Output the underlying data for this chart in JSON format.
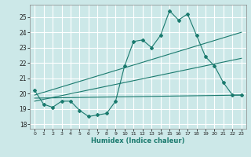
{
  "xlabel": "Humidex (Indice chaleur)",
  "ylabel": "",
  "bg_color": "#cce8e8",
  "grid_color": "#ffffff",
  "line_color": "#1a7a6e",
  "xlim": [
    -0.5,
    23.5
  ],
  "ylim": [
    17.7,
    25.8
  ],
  "yticks": [
    18,
    19,
    20,
    21,
    22,
    23,
    24,
    25
  ],
  "xticks": [
    0,
    1,
    2,
    3,
    4,
    5,
    6,
    7,
    8,
    9,
    10,
    11,
    12,
    13,
    14,
    15,
    16,
    17,
    18,
    19,
    20,
    21,
    22,
    23
  ],
  "main_x": [
    0,
    1,
    2,
    3,
    4,
    5,
    6,
    7,
    8,
    9,
    10,
    11,
    12,
    13,
    14,
    15,
    16,
    17,
    18,
    19,
    20,
    21,
    22,
    23
  ],
  "main_y": [
    20.2,
    19.3,
    19.1,
    19.5,
    19.5,
    18.9,
    18.5,
    18.6,
    18.7,
    19.5,
    21.8,
    23.4,
    23.5,
    23.0,
    23.8,
    25.4,
    24.8,
    25.2,
    23.8,
    22.4,
    21.8,
    20.7,
    19.9,
    19.9
  ],
  "line1_x": [
    0,
    23
  ],
  "line1_y": [
    19.7,
    19.9
  ],
  "line2_x": [
    0,
    23
  ],
  "line2_y": [
    19.5,
    22.3
  ],
  "line3_x": [
    0,
    23
  ],
  "line3_y": [
    19.9,
    24.0
  ]
}
